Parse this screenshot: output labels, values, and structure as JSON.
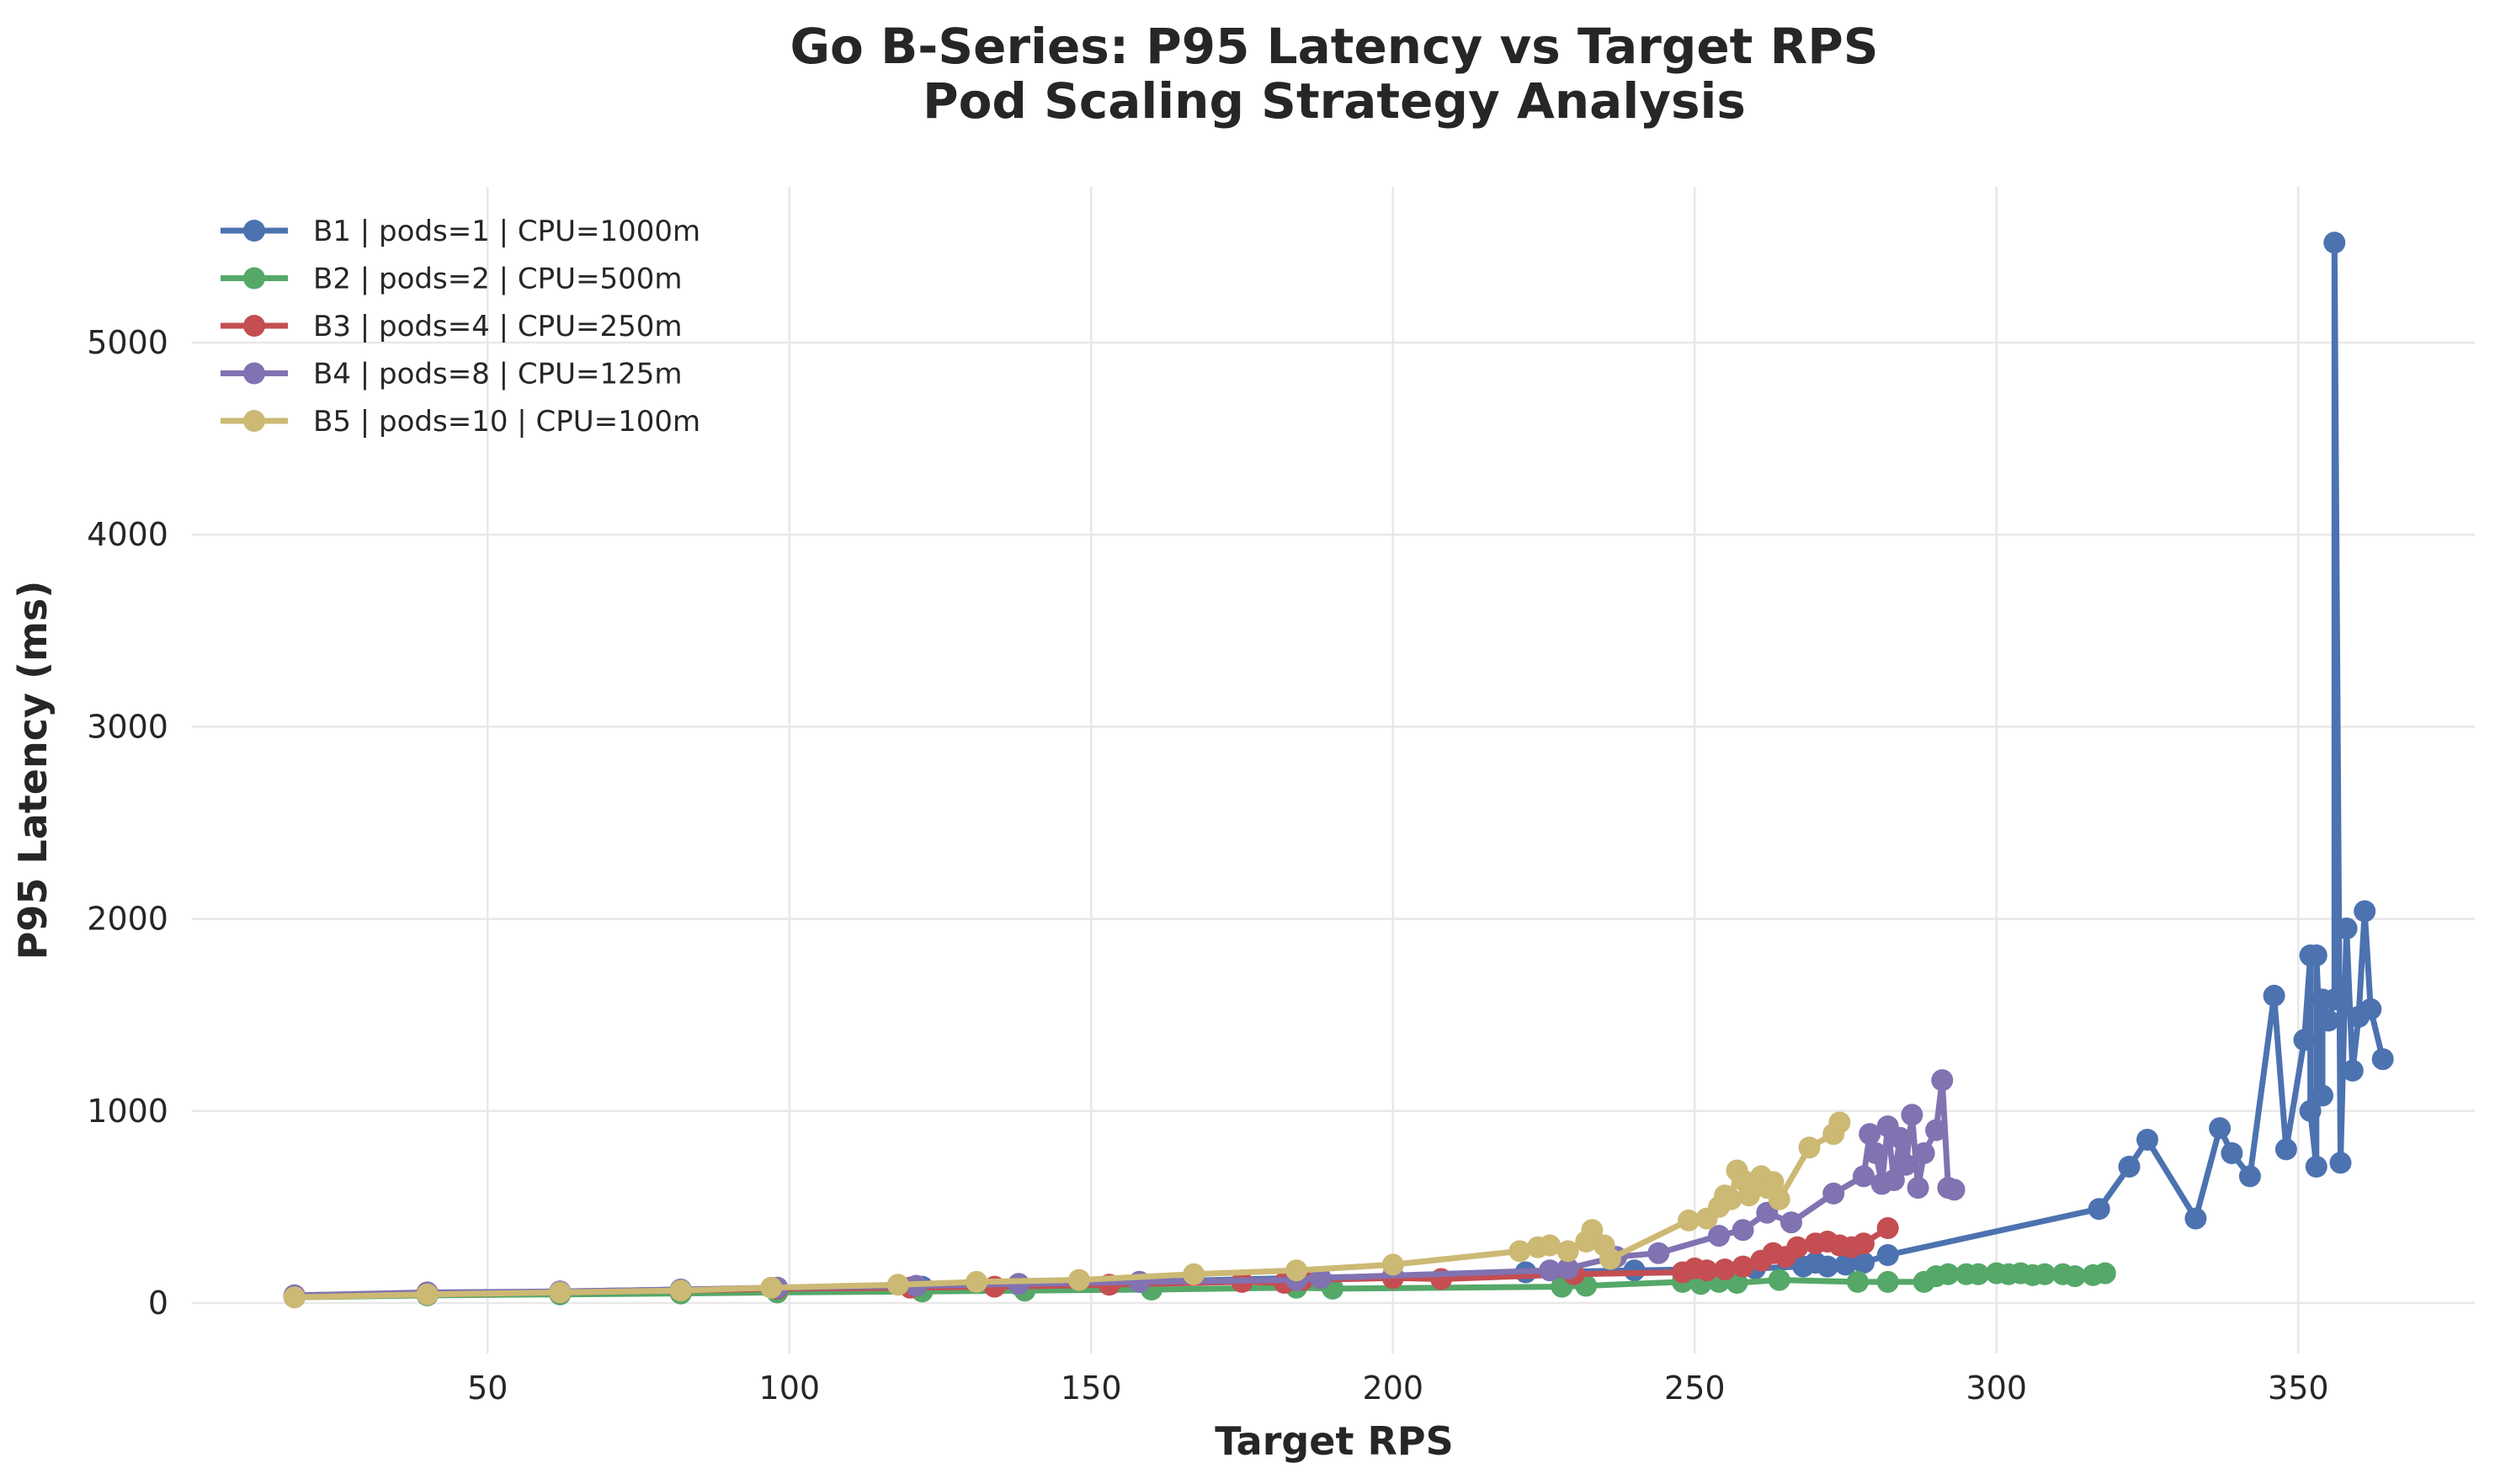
{
  "chart_data": {
    "type": "line",
    "title": "Go B-Series: P95 Latency vs Target RPS",
    "subtitle": "Pod Scaling Strategy Analysis",
    "xlabel": "Target RPS",
    "ylabel": "P95 Latency (ms)",
    "xlim": [
      0,
      385
    ],
    "ylim": [
      -250,
      5800
    ],
    "xticks": [
      50,
      100,
      150,
      200,
      250,
      300,
      350
    ],
    "yticks": [
      0,
      1000,
      2000,
      3000,
      4000,
      5000
    ],
    "grid": true,
    "legend_position": "top-left",
    "series": [
      {
        "name": "B1 | pods=1 | CPU=1000m",
        "color": "#4c72b0",
        "points": [
          [
            18,
            40
          ],
          [
            40,
            50
          ],
          [
            62,
            60
          ],
          [
            82,
            70
          ],
          [
            98,
            75
          ],
          [
            122,
            85
          ],
          [
            138,
            95
          ],
          [
            158,
            110
          ],
          [
            184,
            130
          ],
          [
            200,
            140
          ],
          [
            222,
            160
          ],
          [
            240,
            170
          ],
          [
            260,
            180
          ],
          [
            268,
            190
          ],
          [
            270,
            210
          ],
          [
            272,
            190
          ],
          [
            275,
            200
          ],
          [
            278,
            210
          ],
          [
            282,
            250
          ],
          [
            317,
            490
          ],
          [
            322,
            710
          ],
          [
            325,
            850
          ],
          [
            333,
            440
          ],
          [
            337,
            910
          ],
          [
            339,
            780
          ],
          [
            342,
            660
          ],
          [
            346,
            1600
          ],
          [
            348,
            800
          ],
          [
            351,
            1370
          ],
          [
            352,
            1810
          ],
          [
            352,
            1000
          ],
          [
            353,
            710
          ],
          [
            353,
            1810
          ],
          [
            354,
            1080
          ],
          [
            354,
            1580
          ],
          [
            355,
            1470
          ],
          [
            356,
            1580
          ],
          [
            356,
            5520
          ],
          [
            357,
            730
          ],
          [
            358,
            1950
          ],
          [
            359,
            1210
          ],
          [
            360,
            1490
          ],
          [
            361,
            2040
          ],
          [
            362,
            1530
          ],
          [
            364,
            1270
          ]
        ]
      },
      {
        "name": "B2 | pods=2 | CPU=500m",
        "color": "#55a868",
        "points": [
          [
            18,
            30
          ],
          [
            40,
            40
          ],
          [
            62,
            45
          ],
          [
            82,
            50
          ],
          [
            98,
            55
          ],
          [
            122,
            60
          ],
          [
            139,
            65
          ],
          [
            160,
            70
          ],
          [
            184,
            80
          ],
          [
            190,
            75
          ],
          [
            228,
            85
          ],
          [
            232,
            90
          ],
          [
            248,
            110
          ],
          [
            251,
            100
          ],
          [
            254,
            110
          ],
          [
            257,
            105
          ],
          [
            264,
            120
          ],
          [
            277,
            110
          ],
          [
            282,
            110
          ],
          [
            288,
            110
          ],
          [
            290,
            140
          ],
          [
            292,
            150
          ],
          [
            295,
            150
          ],
          [
            297,
            150
          ],
          [
            300,
            155
          ],
          [
            302,
            150
          ],
          [
            304,
            155
          ],
          [
            306,
            145
          ],
          [
            308,
            150
          ],
          [
            311,
            150
          ],
          [
            313,
            140
          ],
          [
            316,
            145
          ],
          [
            318,
            155
          ]
        ]
      },
      {
        "name": "B3 | pods=4 | CPU=250m",
        "color": "#c44e52",
        "points": [
          [
            18,
            35
          ],
          [
            40,
            45
          ],
          [
            62,
            55
          ],
          [
            82,
            65
          ],
          [
            98,
            75
          ],
          [
            120,
            80
          ],
          [
            134,
            85
          ],
          [
            153,
            95
          ],
          [
            175,
            110
          ],
          [
            182,
            105
          ],
          [
            185,
            120
          ],
          [
            200,
            130
          ],
          [
            208,
            125
          ],
          [
            230,
            150
          ],
          [
            248,
            160
          ],
          [
            250,
            180
          ],
          [
            252,
            170
          ],
          [
            255,
            175
          ],
          [
            258,
            190
          ],
          [
            261,
            220
          ],
          [
            263,
            260
          ],
          [
            265,
            240
          ],
          [
            267,
            290
          ],
          [
            270,
            310
          ],
          [
            272,
            320
          ],
          [
            274,
            300
          ],
          [
            276,
            290
          ],
          [
            278,
            310
          ],
          [
            282,
            390
          ]
        ]
      },
      {
        "name": "B4 | pods=8 | CPU=125m",
        "color": "#8172b2",
        "points": [
          [
            18,
            40
          ],
          [
            40,
            55
          ],
          [
            62,
            60
          ],
          [
            82,
            70
          ],
          [
            98,
            80
          ],
          [
            121,
            90
          ],
          [
            138,
            100
          ],
          [
            158,
            110
          ],
          [
            184,
            120
          ],
          [
            188,
            130
          ],
          [
            226,
            170
          ],
          [
            229,
            180
          ],
          [
            237,
            240
          ],
          [
            244,
            260
          ],
          [
            254,
            350
          ],
          [
            258,
            380
          ],
          [
            262,
            470
          ],
          [
            266,
            420
          ],
          [
            273,
            570
          ],
          [
            278,
            660
          ],
          [
            279,
            880
          ],
          [
            280,
            780
          ],
          [
            281,
            620
          ],
          [
            282,
            920
          ],
          [
            283,
            640
          ],
          [
            284,
            860
          ],
          [
            285,
            720
          ],
          [
            286,
            980
          ],
          [
            287,
            600
          ],
          [
            288,
            780
          ],
          [
            290,
            900
          ],
          [
            291,
            1160
          ],
          [
            292,
            600
          ],
          [
            293,
            590
          ]
        ]
      },
      {
        "name": "B5 | pods=10 | CPU=100m",
        "color": "#ccb974",
        "points": [
          [
            18,
            30
          ],
          [
            40,
            45
          ],
          [
            62,
            55
          ],
          [
            82,
            65
          ],
          [
            97,
            80
          ],
          [
            118,
            95
          ],
          [
            131,
            110
          ],
          [
            148,
            120
          ],
          [
            167,
            150
          ],
          [
            184,
            170
          ],
          [
            200,
            200
          ],
          [
            221,
            270
          ],
          [
            224,
            290
          ],
          [
            226,
            300
          ],
          [
            229,
            270
          ],
          [
            232,
            320
          ],
          [
            233,
            380
          ],
          [
            235,
            300
          ],
          [
            236,
            230
          ],
          [
            249,
            430
          ],
          [
            252,
            440
          ],
          [
            254,
            500
          ],
          [
            255,
            560
          ],
          [
            256,
            540
          ],
          [
            257,
            690
          ],
          [
            258,
            640
          ],
          [
            259,
            560
          ],
          [
            260,
            620
          ],
          [
            261,
            660
          ],
          [
            262,
            600
          ],
          [
            263,
            630
          ],
          [
            264,
            540
          ],
          [
            269,
            810
          ],
          [
            273,
            880
          ],
          [
            274,
            940
          ]
        ]
      }
    ]
  }
}
